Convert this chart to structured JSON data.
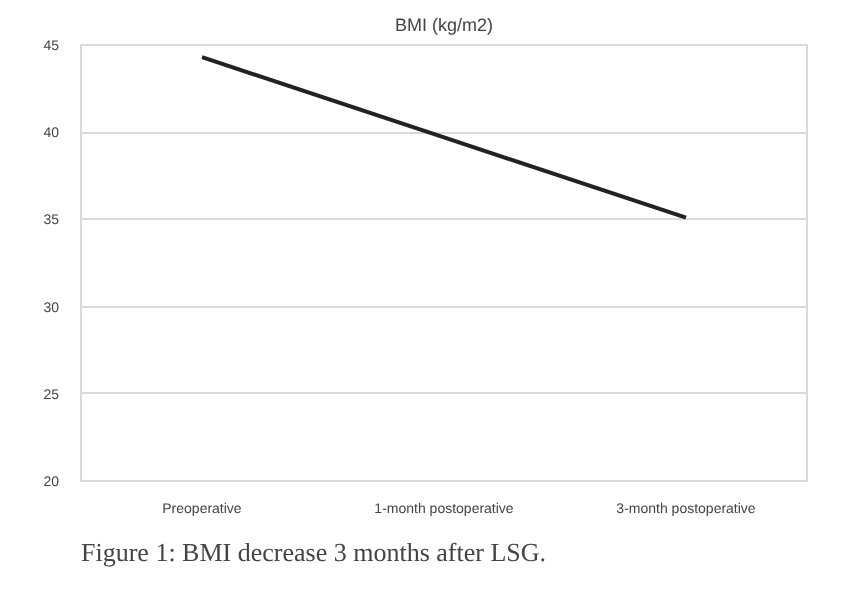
{
  "chart_data": {
    "type": "line",
    "title": "BMI (kg/m2)",
    "categories": [
      "Preoperative",
      "1-month postoperative",
      "3-month postoperative"
    ],
    "series": [
      {
        "color": "#222222",
        "values": [
          44.3,
          39.7,
          35.1
        ]
      }
    ],
    "ylim": [
      20,
      45
    ],
    "yticks": [
      20,
      25,
      30,
      35,
      40,
      45
    ],
    "grid": "y",
    "marker": "none",
    "line_style": "solid",
    "annotations": [
      "Figure 1: BMI decrease 3 months after LSG."
    ]
  }
}
